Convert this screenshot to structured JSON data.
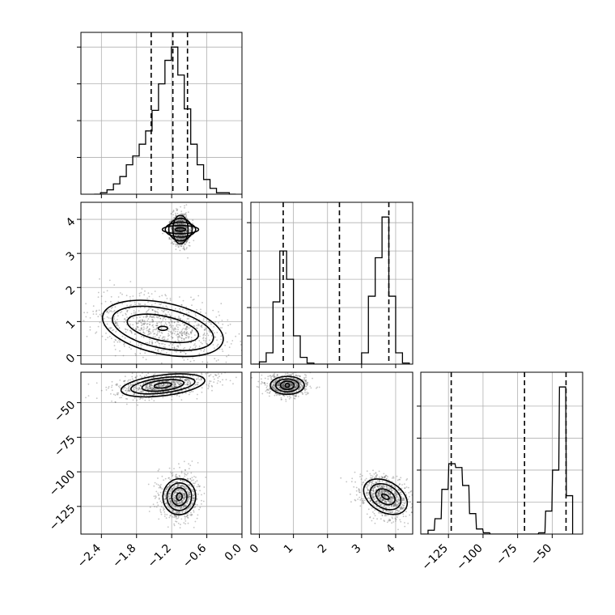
{
  "chart_data": {
    "type": "corner",
    "grid": true,
    "panels": [
      {
        "name": "hist-p1",
        "kind": "histogram",
        "xlim": [
          -2.75,
          0.0
        ],
        "bins": [
          [
            -2.47,
            0.0
          ],
          [
            -2.36,
            0.01
          ],
          [
            -2.25,
            0.03
          ],
          [
            -2.14,
            0.07
          ],
          [
            -2.03,
            0.12
          ],
          [
            -1.92,
            0.2
          ],
          [
            -1.81,
            0.26
          ],
          [
            -1.7,
            0.34
          ],
          [
            -1.59,
            0.43
          ],
          [
            -1.48,
            0.57
          ],
          [
            -1.37,
            0.75
          ],
          [
            -1.26,
            0.91
          ],
          [
            -1.15,
            1.0
          ],
          [
            -1.04,
            0.81
          ],
          [
            -0.93,
            0.58
          ],
          [
            -0.82,
            0.34
          ],
          [
            -0.71,
            0.2
          ],
          [
            -0.6,
            0.1
          ],
          [
            -0.49,
            0.04
          ],
          [
            -0.38,
            0.01
          ],
          [
            -0.27,
            0.01
          ],
          [
            -0.16,
            0.0
          ]
        ],
        "quantiles": [
          -1.55,
          -1.18,
          -0.93
        ],
        "yticks": [
          0.25,
          0.5,
          0.75,
          1.0
        ]
      },
      {
        "name": "joint-p1-p2",
        "kind": "joint",
        "xlim": [
          -2.75,
          0.0
        ],
        "ylim": [
          -0.25,
          4.5
        ],
        "clusters": [
          {
            "center": [
              -1.05,
              3.7
            ],
            "levels": [
              [
                0.13,
                0.42,
                0
              ],
              [
                0.2,
                0.33,
                0
              ],
              [
                0.26,
                0.22,
                0
              ],
              [
                0.31,
                0.12,
                0
              ],
              [
                0.09,
                0.05,
                0
              ]
            ]
          },
          {
            "center": [
              -1.35,
              0.8
            ],
            "levels": [
              [
                1.05,
                0.75,
                12
              ],
              [
                0.88,
                0.58,
                12
              ],
              [
                0.62,
                0.36,
                12
              ],
              [
                0.08,
                0.06,
                0
              ]
            ]
          }
        ],
        "yticks": [
          0,
          1,
          2,
          3,
          4
        ],
        "ytick_labels": [
          "0",
          "1",
          "2",
          "3",
          "4"
        ]
      },
      {
        "name": "hist-p2",
        "kind": "histogram",
        "xlim": [
          -0.25,
          4.5
        ],
        "bins": [
          [
            -0.1,
            0.0
          ],
          [
            0.1,
            0.02
          ],
          [
            0.3,
            0.1
          ],
          [
            0.5,
            0.55
          ],
          [
            0.7,
            1.0
          ],
          [
            0.9,
            0.75
          ],
          [
            1.1,
            0.25
          ],
          [
            1.3,
            0.06
          ],
          [
            1.5,
            0.01
          ],
          [
            1.7,
            0.0
          ],
          [
            1.9,
            0.0
          ],
          [
            2.1,
            0.0
          ],
          [
            2.3,
            0.0
          ],
          [
            2.5,
            0.0
          ],
          [
            2.7,
            0.0
          ],
          [
            2.9,
            0.0
          ],
          [
            3.1,
            0.1
          ],
          [
            3.3,
            0.6
          ],
          [
            3.5,
            0.94
          ],
          [
            3.7,
            1.3
          ],
          [
            3.9,
            0.6
          ],
          [
            4.1,
            0.1
          ],
          [
            4.3,
            0.01
          ]
        ],
        "quantiles": [
          0.7,
          2.35,
          3.8
        ],
        "yticks": [
          0.25,
          0.5,
          0.75,
          1.0,
          1.25
        ]
      },
      {
        "name": "joint-p1-p3",
        "kind": "joint",
        "xlim": [
          -2.75,
          0.0
        ],
        "ylim": [
          -145,
          -28
        ],
        "clusters": [
          {
            "center": [
              -1.35,
              -37.5
            ],
            "levels": [
              [
                0.72,
                7.5,
                -7
              ],
              [
                0.55,
                5.5,
                -7
              ],
              [
                0.36,
                3.8,
                -7
              ],
              [
                0.15,
                1.8,
                -7
              ]
            ]
          },
          {
            "center": [
              -1.07,
              -118
            ],
            "levels": [
              [
                0.28,
                13,
                5
              ],
              [
                0.21,
                10,
                5
              ],
              [
                0.13,
                6.5,
                5
              ],
              [
                0.05,
                2.6,
                5
              ]
            ]
          }
        ],
        "xticks": [
          -2.4,
          -1.8,
          -1.2,
          -0.6,
          0.0
        ],
        "xtick_labels": [
          "−2.4",
          "−1.8",
          "−1.2",
          "−0.6",
          "0.0"
        ],
        "yticks": [
          -50,
          -75,
          -100,
          -125
        ],
        "ytick_labels": [
          "−50",
          "−75",
          "−100",
          "−125"
        ]
      },
      {
        "name": "joint-p2-p3",
        "kind": "joint",
        "xlim": [
          -0.25,
          4.5
        ],
        "ylim": [
          -145,
          -28
        ],
        "clusters": [
          {
            "center": [
              0.82,
              -37.5
            ],
            "levels": [
              [
                0.5,
                6.5,
                0
              ],
              [
                0.34,
                4.6,
                0
              ],
              [
                0.2,
                3.0,
                0
              ],
              [
                0.06,
                1.4,
                0
              ]
            ]
          },
          {
            "center": [
              3.7,
              -118
            ],
            "levels": [
              [
                0.45,
                17,
                -60
              ],
              [
                0.34,
                12,
                -60
              ],
              [
                0.2,
                7.5,
                -60
              ],
              [
                0.06,
                3.0,
                -60
              ]
            ]
          }
        ],
        "xticks": [
          0,
          1,
          2,
          3,
          4
        ],
        "xtick_labels": [
          "0",
          "1",
          "2",
          "3",
          "4"
        ]
      },
      {
        "name": "hist-p3",
        "kind": "histogram",
        "xlim": [
          -145,
          -28
        ],
        "bins": [
          [
            -142,
            0.0
          ],
          [
            -137.5,
            0.03
          ],
          [
            -132.5,
            0.12
          ],
          [
            -127.5,
            0.35
          ],
          [
            -122.5,
            0.55
          ],
          [
            -117.5,
            0.52
          ],
          [
            -112.5,
            0.38
          ],
          [
            -107.5,
            0.16
          ],
          [
            -102.5,
            0.04
          ],
          [
            -97.5,
            0.01
          ],
          [
            -92.5,
            0.0
          ],
          [
            -87.5,
            0.0
          ],
          [
            -82.5,
            0.0
          ],
          [
            -77.5,
            0.0
          ],
          [
            -72.5,
            0.0
          ],
          [
            -67.5,
            0.0
          ],
          [
            -62.5,
            0.0
          ],
          [
            -57.5,
            0.01
          ],
          [
            -52.5,
            0.18
          ],
          [
            -47.5,
            0.5
          ],
          [
            -42.5,
            1.15
          ],
          [
            -37.5,
            0.3
          ]
        ],
        "quantiles": [
          -123,
          -70,
          -40
        ],
        "yticks": [
          0.25,
          0.5,
          0.75,
          1.0
        ],
        "xticks": [
          -125,
          -100,
          -75,
          -50
        ],
        "xtick_labels": [
          "−125",
          "−100",
          "−75",
          "−50"
        ]
      }
    ]
  }
}
